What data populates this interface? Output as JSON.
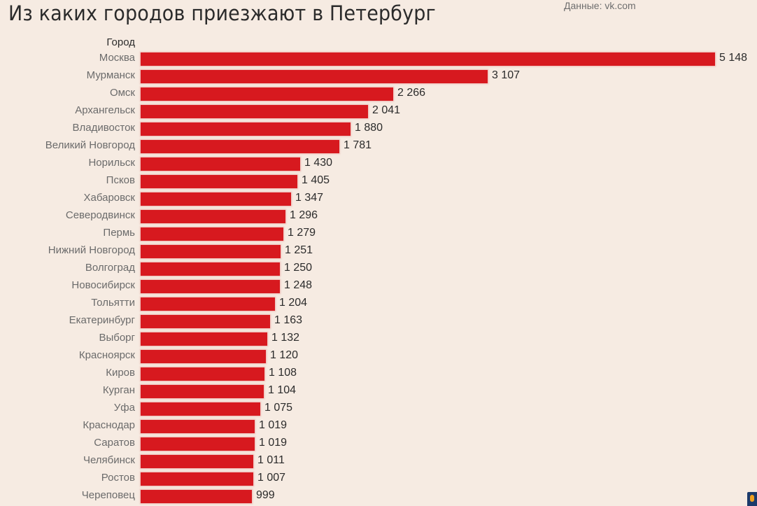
{
  "header": {
    "title": "Из каких городов приезжают в Петербург",
    "source": "Данные: vk.com"
  },
  "colors": {
    "bar": "#d7191f",
    "background": "#f6ebe2",
    "text": "#2b2b2b",
    "label": "#6b6b6b"
  },
  "chart_data": {
    "type": "bar",
    "orientation": "horizontal",
    "title": "Из каких городов приезжают в Петербург",
    "source": "Данные: vk.com",
    "category_header": "Город",
    "categories": [
      "Москва",
      "Мурманск",
      "Омск",
      "Архангельск",
      "Владивосток",
      "Великий Новгород",
      "Норильск",
      "Псков",
      "Хабаровск",
      "Северодвинск",
      "Пермь",
      "Нижний Новгород",
      "Волгоград",
      "Новосибирск",
      "Тольятти",
      "Екатеринбург",
      "Выборг",
      "Красноярск",
      "Киров",
      "Курган",
      "Уфа",
      "Краснодар",
      "Саратов",
      "Челябинск",
      "Ростов",
      "Череповец"
    ],
    "values": [
      5148,
      3107,
      2266,
      2041,
      1880,
      1781,
      1430,
      1405,
      1347,
      1296,
      1279,
      1251,
      1250,
      1248,
      1204,
      1163,
      1132,
      1120,
      1108,
      1104,
      1075,
      1019,
      1019,
      1011,
      1007,
      999
    ],
    "value_labels": [
      "5 148",
      "3 107",
      "2 266",
      "2 041",
      "1 880",
      "1 781",
      "1 430",
      "1 405",
      "1 347",
      "1 296",
      "1 279",
      "1 251",
      "1 250",
      "1 248",
      "1 204",
      "1 163",
      "1 132",
      "1 120",
      "1 108",
      "1 104",
      "1 075",
      "1 019",
      "1 019",
      "1 011",
      "1 007",
      "999"
    ],
    "xlabel": "",
    "ylabel": "Город",
    "grid": false,
    "legend": false
  }
}
